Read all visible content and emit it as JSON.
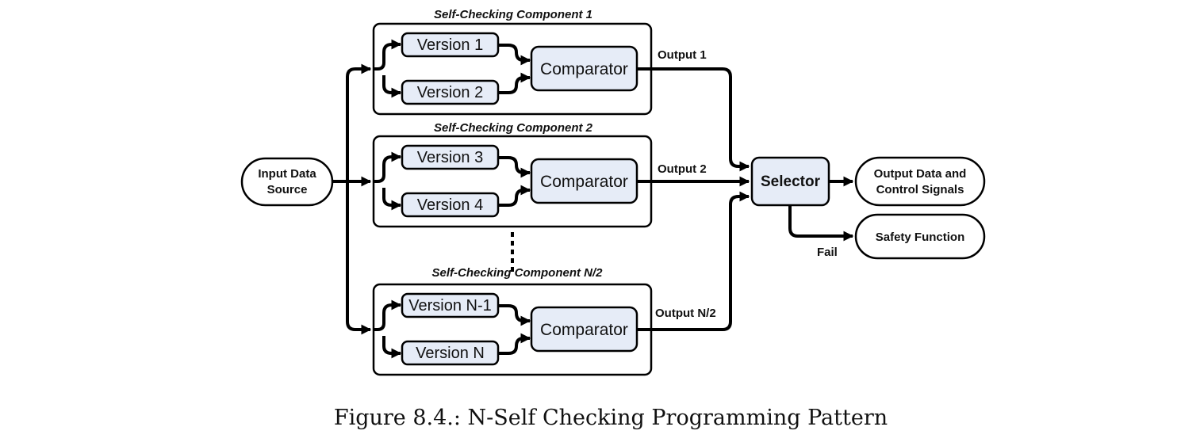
{
  "components": [
    {
      "title": "Self-Checking Component 1",
      "version_a": "Version 1",
      "version_b": "Version 2",
      "comparator": "Comparator",
      "output": "Output 1"
    },
    {
      "title": "Self-Checking Component 2",
      "version_a": "Version 3",
      "version_b": "Version 4",
      "comparator": "Comparator",
      "output": "Output 2"
    },
    {
      "title": "Self-Checking Component N/2",
      "version_a": "Version N-1",
      "version_b": "Version N",
      "comparator": "Comparator",
      "output": "Output N/2"
    }
  ],
  "input": {
    "line1": "Input Data",
    "line2": "Source"
  },
  "selector": "Selector",
  "outputs": {
    "data_line1": "Output Data and",
    "data_line2": "Control Signals",
    "safety": "Safety Function",
    "fail": "Fail"
  },
  "caption": "Figure 8.4.: N-Self Checking Programming Pattern",
  "colors": {
    "box_fill": "#e6ecf7",
    "stroke": "#000000"
  }
}
